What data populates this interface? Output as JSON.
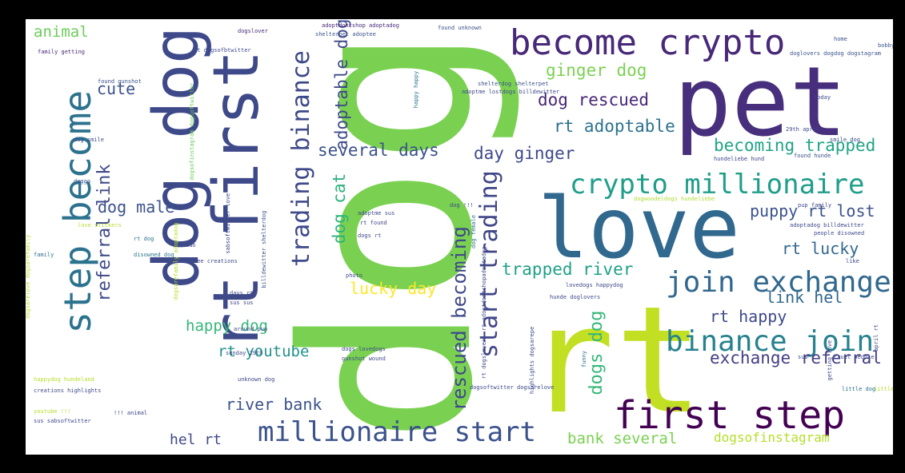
{
  "colors": {
    "frame": "#000000",
    "background": "#ffffff",
    "palette": [
      "#440154",
      "#472f7d",
      "#3b528b",
      "#2c728e",
      "#21918c",
      "#28ae80",
      "#5ec962",
      "#addc30",
      "#fde725"
    ]
  },
  "words": [
    {
      "text": "dog",
      "color": "#7ad151"
    },
    {
      "text": "rt",
      "color": "#c2df23"
    },
    {
      "text": "pet",
      "color": "#472f7d"
    },
    {
      "text": "love",
      "color": "#31688e"
    },
    {
      "text": "dog dog",
      "color": "#3e4989"
    },
    {
      "text": "rt first",
      "color": "#3e4989"
    },
    {
      "text": "become crypto",
      "color": "#482878"
    },
    {
      "text": "first step",
      "color": "#440154"
    },
    {
      "text": "step become",
      "color": "#2c728e"
    },
    {
      "text": "crypto millionaire",
      "color": "#1f9e89"
    },
    {
      "text": "join exchange",
      "color": "#31688e"
    },
    {
      "text": "binance join",
      "color": "#26828e"
    },
    {
      "text": "millionaire start",
      "color": "#3b528b"
    },
    {
      "text": "start trading",
      "color": "#404688"
    },
    {
      "text": "trading binance",
      "color": "#3e4989"
    },
    {
      "text": "rescued becoming",
      "color": "#3e4989"
    },
    {
      "text": "dogs dog",
      "color": "#35b779"
    },
    {
      "text": "referral link",
      "color": "#3e4989"
    },
    {
      "text": "exchange referral",
      "color": "#433e85"
    },
    {
      "text": "becoming trapped",
      "color": "#20a486"
    },
    {
      "text": "trapped river",
      "color": "#1fa188"
    },
    {
      "text": "rt adoptable",
      "color": "#2c728e"
    },
    {
      "text": "dog rescued",
      "color": "#482878"
    },
    {
      "text": "ginger dog",
      "color": "#7ad151"
    },
    {
      "text": "several days",
      "color": "#3b528b"
    },
    {
      "text": "day ginger",
      "color": "#3e4989"
    },
    {
      "text": "adoptable dog",
      "color": "#3e4989"
    },
    {
      "text": "dog cat",
      "color": "#2db27d"
    },
    {
      "text": "puppy rt lost",
      "color": "#3b528b"
    },
    {
      "text": "rt lucky",
      "color": "#31688e"
    },
    {
      "text": "link hel",
      "color": "#31688e"
    },
    {
      "text": "rt happy",
      "color": "#3e4989"
    },
    {
      "text": "lucky day",
      "color": "#fde725"
    },
    {
      "text": "happy dog",
      "color": "#35b779"
    },
    {
      "text": "rt youtube",
      "color": "#21918c"
    },
    {
      "text": "river bank",
      "color": "#3b528b"
    },
    {
      "text": "bank several",
      "color": "#7ad151"
    },
    {
      "text": "dogsofinstagram",
      "color": "#b5de2b"
    },
    {
      "text": "hel rt",
      "color": "#3e4989"
    },
    {
      "text": "dog male",
      "color": "#3b528b"
    },
    {
      "text": "cute",
      "color": "#3b528b"
    },
    {
      "text": "animal",
      "color": "#6ccd5a"
    },
    {
      "text": "adoptdontshop adoptadog",
      "color": "#482878"
    },
    {
      "text": "shelterpet adoptee",
      "color": "#3b528b"
    },
    {
      "text": "dogslover",
      "color": "#482878"
    },
    {
      "text": "found unknown",
      "color": "#3b528b"
    },
    {
      "text": "home",
      "color": "#3b528b"
    },
    {
      "text": "bobby dog",
      "color": "#3b528b"
    },
    {
      "text": "doglovers dog",
      "color": "#3b528b"
    },
    {
      "text": "dog dogstagram",
      "color": "#3b528b"
    },
    {
      "text": "rt dogsofbtwitter",
      "color": "#3e4989"
    },
    {
      "text": "family getting",
      "color": "#482878"
    },
    {
      "text": "found gunshot",
      "color": "#3b528b"
    },
    {
      "text": "happy happy",
      "color": "#2c728e"
    },
    {
      "text": "shelterdog shelterpet",
      "color": "#3b528b"
    },
    {
      "text": "adoptme lostdogs billdewitter",
      "color": "#3e4989"
    },
    {
      "text": "dog smile",
      "color": "#3e4989"
    },
    {
      "text": "smile dog",
      "color": "#3e4989"
    },
    {
      "text": "found hunde",
      "color": "#3b528b"
    },
    {
      "text": "today",
      "color": "#3e4989"
    },
    {
      "text": "29th april",
      "color": "#3e4989"
    },
    {
      "text": "hundeliebe hund",
      "color": "#3e4989"
    },
    {
      "text": "doggo",
      "color": "#3b528b"
    },
    {
      "text": "dogsofinstagram dogsoftwitter",
      "color": "#6ccd5a"
    },
    {
      "text": "dogwoodeldogs hundeliebe",
      "color": "#addc30"
    },
    {
      "text": "adoptme sus",
      "color": "#3e4989"
    },
    {
      "text": "rt found",
      "color": "#3e4989"
    },
    {
      "text": "dogs rt",
      "color": "#3e4989"
    },
    {
      "text": "dog !!!",
      "color": "#3e4989"
    },
    {
      "text": "pup family",
      "color": "#3e4989"
    },
    {
      "text": "adoptadog billdewitter",
      "color": "#3e4989"
    },
    {
      "text": "people disowned",
      "color": "#3e4989"
    },
    {
      "text": "dog female",
      "color": "#2c728e"
    },
    {
      "text": "love stickers",
      "color": "#b5de2b"
    },
    {
      "text": "rt dog",
      "color": "#2c728e"
    },
    {
      "text": "family",
      "color": "#2c728e"
    },
    {
      "text": "disowned dog",
      "color": "#2c728e"
    },
    {
      "text": "photo",
      "color": "#3e4989"
    },
    {
      "text": "days rt",
      "color": "#3e4989"
    },
    {
      "text": "sus sus",
      "color": "#3e4989"
    },
    {
      "text": "lovedogs happydog",
      "color": "#3e4989"
    },
    {
      "text": "hunde doglovers",
      "color": "#3e4989"
    },
    {
      "text": "like",
      "color": "#3e4989"
    },
    {
      "text": "around pup",
      "color": "#3e4989"
    },
    {
      "text": "funny",
      "color": "#2c728e"
    },
    {
      "text": "sunday 29th",
      "color": "#3e4989"
    },
    {
      "text": "dogs lovedogs",
      "color": "#3e4989"
    },
    {
      "text": "gunshot wound",
      "color": "#3e4989"
    },
    {
      "text": "unknown dog",
      "color": "#3e4989"
    },
    {
      "text": "dogsoftwitter dogsarelove",
      "color": "#3e4989"
    },
    {
      "text": "getting love",
      "color": "#3e4989"
    },
    {
      "text": "highlights dogsarepe",
      "color": "#3e4989"
    },
    {
      "text": "cruel people",
      "color": "#3e4989"
    },
    {
      "text": "sus",
      "color": "#3e4989"
    },
    {
      "text": "little dog",
      "color": "#2c728e"
    },
    {
      "text": "creations highlights",
      "color": "#3e4989"
    },
    {
      "text": "happydog hundeland",
      "color": "#b5de2b"
    },
    {
      "text": "youtube !!!",
      "color": "#b5de2b"
    },
    {
      "text": "sus sabsoftwitter",
      "color": "#3e4989"
    },
    {
      "text": "!!! animal",
      "color": "#3e4989"
    },
    {
      "text": "need",
      "color": "#b5de2b"
    },
    {
      "text": "dogsarelove dogsarefamily",
      "color": "#b5de2b"
    },
    {
      "text": "dogsarefamily adoptadog",
      "color": "#b5de2b"
    },
    {
      "text": "billdewitter shelterdog",
      "color": "#3b528b"
    },
    {
      "text": "sabsoftwitter love",
      "color": "#3e4989"
    },
    {
      "text": "ado",
      "color": "#3e4989"
    },
    {
      "text": "rt dogslover",
      "color": "#3e4989"
    },
    {
      "text": "april rt",
      "color": "#3e4989"
    },
    {
      "text": "little",
      "color": "#b5de2b"
    },
    {
      "text": "see creations",
      "color": "#3e4989"
    },
    {
      "text": "rt adoptdontshopadoptadog",
      "color": "#3e4989"
    }
  ]
}
